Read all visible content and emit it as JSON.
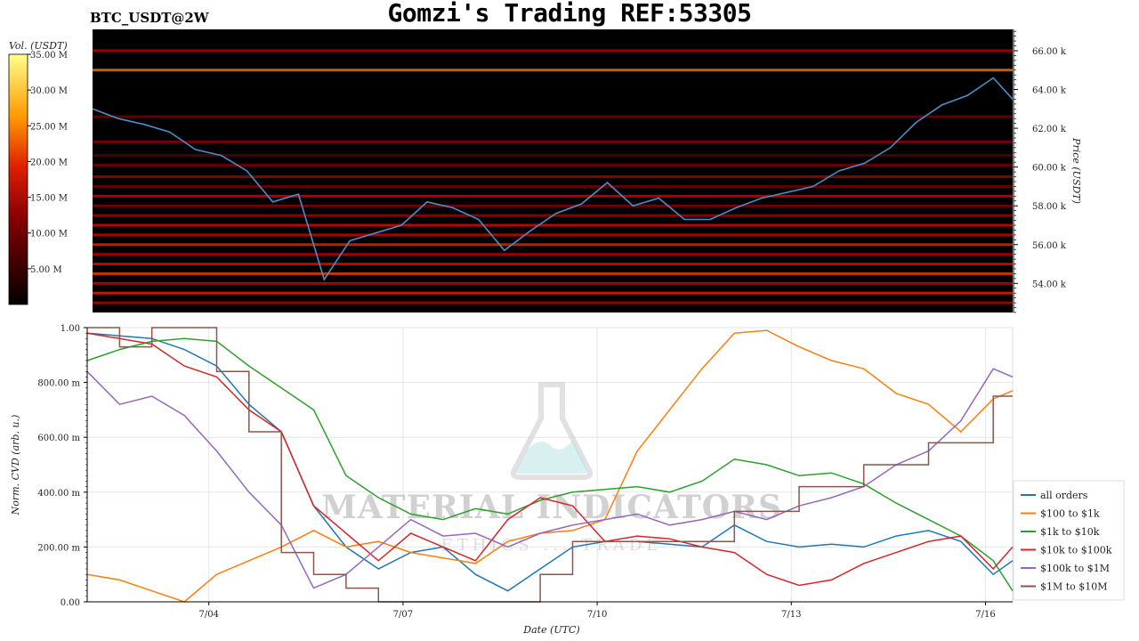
{
  "header": {
    "title": "Gomzi's Trading REF:53305",
    "pair": "BTC_USDT@2W"
  },
  "watermark": {
    "brand": "MATERIAL INDICATORS",
    "tagline": "ETHICS ... TRADE"
  },
  "chart_data": [
    {
      "type": "heatmap",
      "title": "",
      "colorbar": {
        "label": "Vol. (USDT)",
        "ticks": [
          "5.00 M",
          "10.00 M",
          "15.00 M",
          "20.00 M",
          "25.00 M",
          "30.00 M",
          "35.00 M"
        ],
        "range": [
          0,
          35
        ]
      },
      "ylabel": "Price (USDT)",
      "yticks": [
        "54.00 k",
        "56.00 k",
        "58.00 k",
        "60.00 k",
        "62.00 k",
        "64.00 k",
        "66.00 k"
      ],
      "ylim": [
        52500,
        67100
      ],
      "xlim": [
        0,
        14.3
      ],
      "price_series": {
        "name": "price",
        "color": "#4a8fc7",
        "x": [
          0,
          0.4,
          0.8,
          1.2,
          1.6,
          2.0,
          2.4,
          2.8,
          3.2,
          3.6,
          4.0,
          4.4,
          4.8,
          5.2,
          5.6,
          6.0,
          6.4,
          6.8,
          7.2,
          7.6,
          8.0,
          8.4,
          8.8,
          9.2,
          9.6,
          10.0,
          10.4,
          10.8,
          11.2,
          11.6,
          12.0,
          12.4,
          12.8,
          13.2,
          13.6,
          14.0,
          14.3
        ],
        "y": [
          63000,
          62500,
          62200,
          61800,
          60900,
          60600,
          59800,
          58200,
          58600,
          54200,
          56200,
          56600,
          57000,
          58200,
          57900,
          57300,
          55700,
          56700,
          57600,
          58100,
          59200,
          58000,
          58400,
          57300,
          57300,
          57900,
          58400,
          58700,
          59000,
          59800,
          60200,
          61000,
          62300,
          63200,
          63700,
          64600,
          63500
        ]
      },
      "liquidity_bands": {
        "note": "horizontal order-book liquidity levels",
        "price": [
          66000,
          65000,
          62600,
          61300,
          60600,
          60100,
          59500,
          59000,
          58500,
          58000,
          57500,
          57000,
          56500,
          56000,
          55500,
          55000,
          54500,
          54000,
          53500,
          53000
        ],
        "volume_musd": [
          8,
          14,
          5,
          6,
          4,
          5,
          7,
          5,
          9,
          6,
          7,
          10,
          9,
          11,
          8,
          10,
          12,
          9,
          11,
          8
        ]
      }
    },
    {
      "type": "line",
      "title": "",
      "xlabel": "Date (UTC)",
      "ylabel": "Norm. CVD (arb. u.)",
      "xticks": [
        "7/04",
        "7/07",
        "7/10",
        "7/13",
        "7/16"
      ],
      "xtick_positions": [
        1.88,
        4.88,
        7.88,
        10.88,
        13.88
      ],
      "yticks": [
        "0.00",
        "200.00 m",
        "400.00 m",
        "600.00 m",
        "800.00 m",
        "1.00"
      ],
      "ylim": [
        0,
        1
      ],
      "xlim": [
        0,
        14.3
      ],
      "grid": true,
      "legend_position": "lower-right",
      "x": [
        0,
        0.5,
        1.0,
        1.5,
        2.0,
        2.5,
        3.0,
        3.5,
        4.0,
        4.5,
        5.0,
        5.5,
        6.0,
        6.5,
        7.0,
        7.5,
        8.0,
        8.5,
        9.0,
        9.5,
        10.0,
        10.5,
        11.0,
        11.5,
        12.0,
        12.5,
        13.0,
        13.5,
        14.0,
        14.3
      ],
      "series": [
        {
          "name": "all orders",
          "color": "#1f77b4",
          "values": [
            0.98,
            0.97,
            0.96,
            0.92,
            0.86,
            0.72,
            0.62,
            0.35,
            0.2,
            0.12,
            0.18,
            0.2,
            0.1,
            0.04,
            0.12,
            0.2,
            0.22,
            0.22,
            0.21,
            0.2,
            0.28,
            0.22,
            0.2,
            0.21,
            0.2,
            0.24,
            0.26,
            0.22,
            0.1,
            0.15
          ]
        },
        {
          "name": "$100 to $1k",
          "color": "#ff7f0e",
          "values": [
            0.1,
            0.08,
            0.04,
            0.0,
            0.1,
            0.15,
            0.2,
            0.26,
            0.2,
            0.22,
            0.18,
            0.16,
            0.14,
            0.22,
            0.25,
            0.26,
            0.3,
            0.55,
            0.7,
            0.85,
            0.98,
            0.99,
            0.93,
            0.88,
            0.85,
            0.76,
            0.72,
            0.62,
            0.74,
            0.77
          ]
        },
        {
          "name": "$1k to $10k",
          "color": "#2ca02c",
          "values": [
            0.88,
            0.92,
            0.95,
            0.96,
            0.95,
            0.86,
            0.78,
            0.7,
            0.46,
            0.38,
            0.32,
            0.3,
            0.34,
            0.32,
            0.37,
            0.4,
            0.41,
            0.42,
            0.4,
            0.44,
            0.52,
            0.5,
            0.46,
            0.47,
            0.43,
            0.36,
            0.3,
            0.24,
            0.15,
            0.04
          ]
        },
        {
          "name": "$10k to $100k",
          "color": "#d62728",
          "values": [
            0.98,
            0.96,
            0.94,
            0.86,
            0.82,
            0.7,
            0.62,
            0.35,
            0.25,
            0.15,
            0.25,
            0.2,
            0.15,
            0.3,
            0.38,
            0.35,
            0.22,
            0.24,
            0.23,
            0.2,
            0.18,
            0.1,
            0.06,
            0.08,
            0.14,
            0.18,
            0.22,
            0.24,
            0.12,
            0.2
          ]
        },
        {
          "name": "$100k to $1M",
          "color": "#9467bd",
          "values": [
            0.84,
            0.72,
            0.75,
            0.68,
            0.55,
            0.4,
            0.28,
            0.05,
            0.1,
            0.2,
            0.3,
            0.24,
            0.25,
            0.2,
            0.25,
            0.28,
            0.3,
            0.32,
            0.28,
            0.3,
            0.33,
            0.3,
            0.35,
            0.38,
            0.42,
            0.5,
            0.55,
            0.66,
            0.85,
            0.82
          ]
        },
        {
          "name": "$1M to $10M",
          "color": "#8c564b",
          "values": [
            1.0,
            0.93,
            1.0,
            1.0,
            0.84,
            0.62,
            0.18,
            0.1,
            0.05,
            0.0,
            0.0,
            0.0,
            0.0,
            0.0,
            0.1,
            0.22,
            0.22,
            0.22,
            0.22,
            0.22,
            0.33,
            0.33,
            0.42,
            0.42,
            0.5,
            0.5,
            0.58,
            0.58,
            0.75,
            0.75
          ]
        }
      ]
    }
  ]
}
